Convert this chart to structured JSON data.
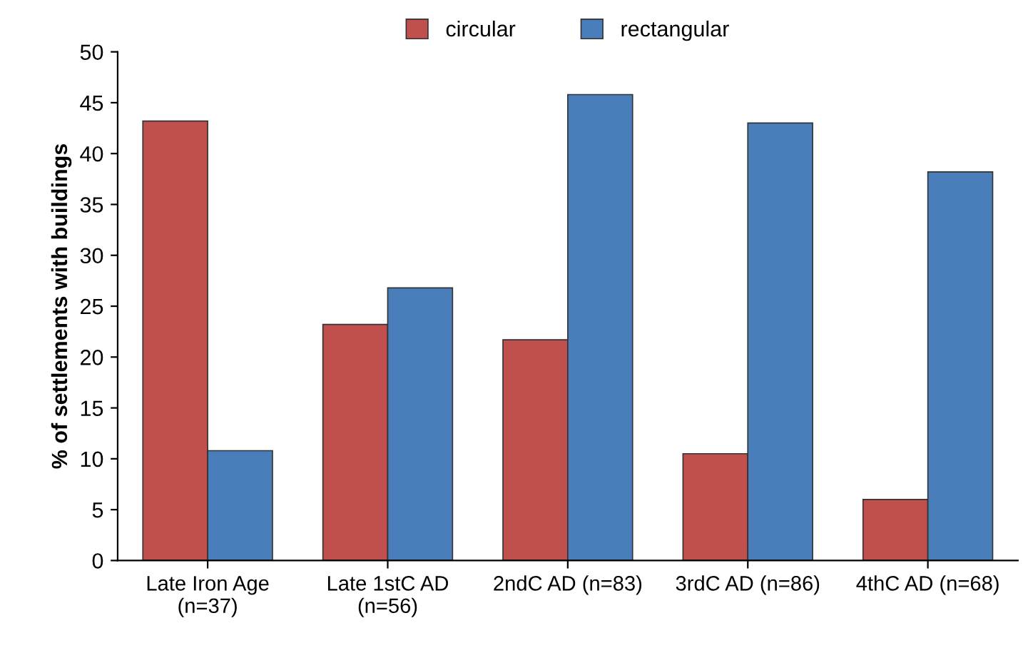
{
  "chart_data": {
    "type": "bar",
    "ylabel": "% of settlements with buildings",
    "categories": [
      "Late Iron Age\n(n=37)",
      "Late 1stC AD\n(n=56)",
      "2ndC AD (n=83)",
      "3rdC AD (n=86)",
      "4thC AD (n=68)"
    ],
    "series": [
      {
        "name": "circular",
        "color": "#c0504d",
        "values": [
          43.2,
          23.2,
          21.7,
          10.5,
          6.0
        ]
      },
      {
        "name": "rectangular",
        "color": "#4a7ebb",
        "values": [
          10.8,
          26.8,
          45.8,
          43.0,
          38.2
        ]
      }
    ],
    "ylim": [
      0,
      50
    ],
    "yticks": [
      0,
      5,
      10,
      15,
      20,
      25,
      30,
      35,
      40,
      45,
      50
    ],
    "grid": false,
    "legend": "top"
  }
}
